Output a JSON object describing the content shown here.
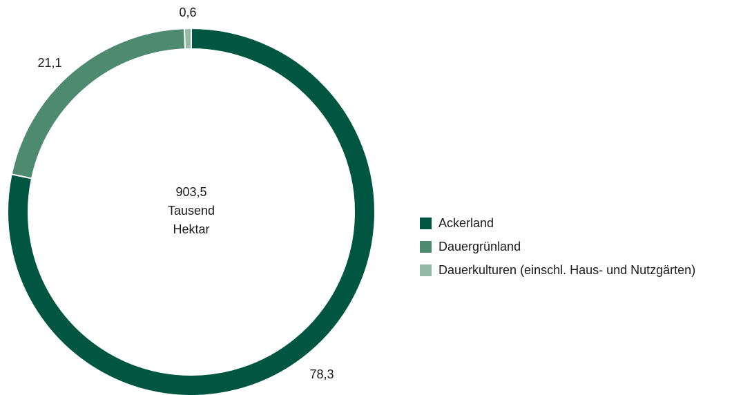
{
  "chart_data": {
    "type": "pie",
    "categories": [
      "Ackerland",
      "Dauergrünland",
      "Dauerkulturen (einschl. Haus- und Nutzgärten)"
    ],
    "values": [
      78.3,
      21.1,
      0.6
    ],
    "value_labels": [
      "78,3",
      "21,1",
      "0,6"
    ],
    "colors": [
      "#005640",
      "#4e8a70",
      "#94b9a5"
    ],
    "center_text": [
      "903,5",
      "Tausend",
      "Hektar"
    ],
    "donut": true,
    "legend_placement": "right"
  }
}
